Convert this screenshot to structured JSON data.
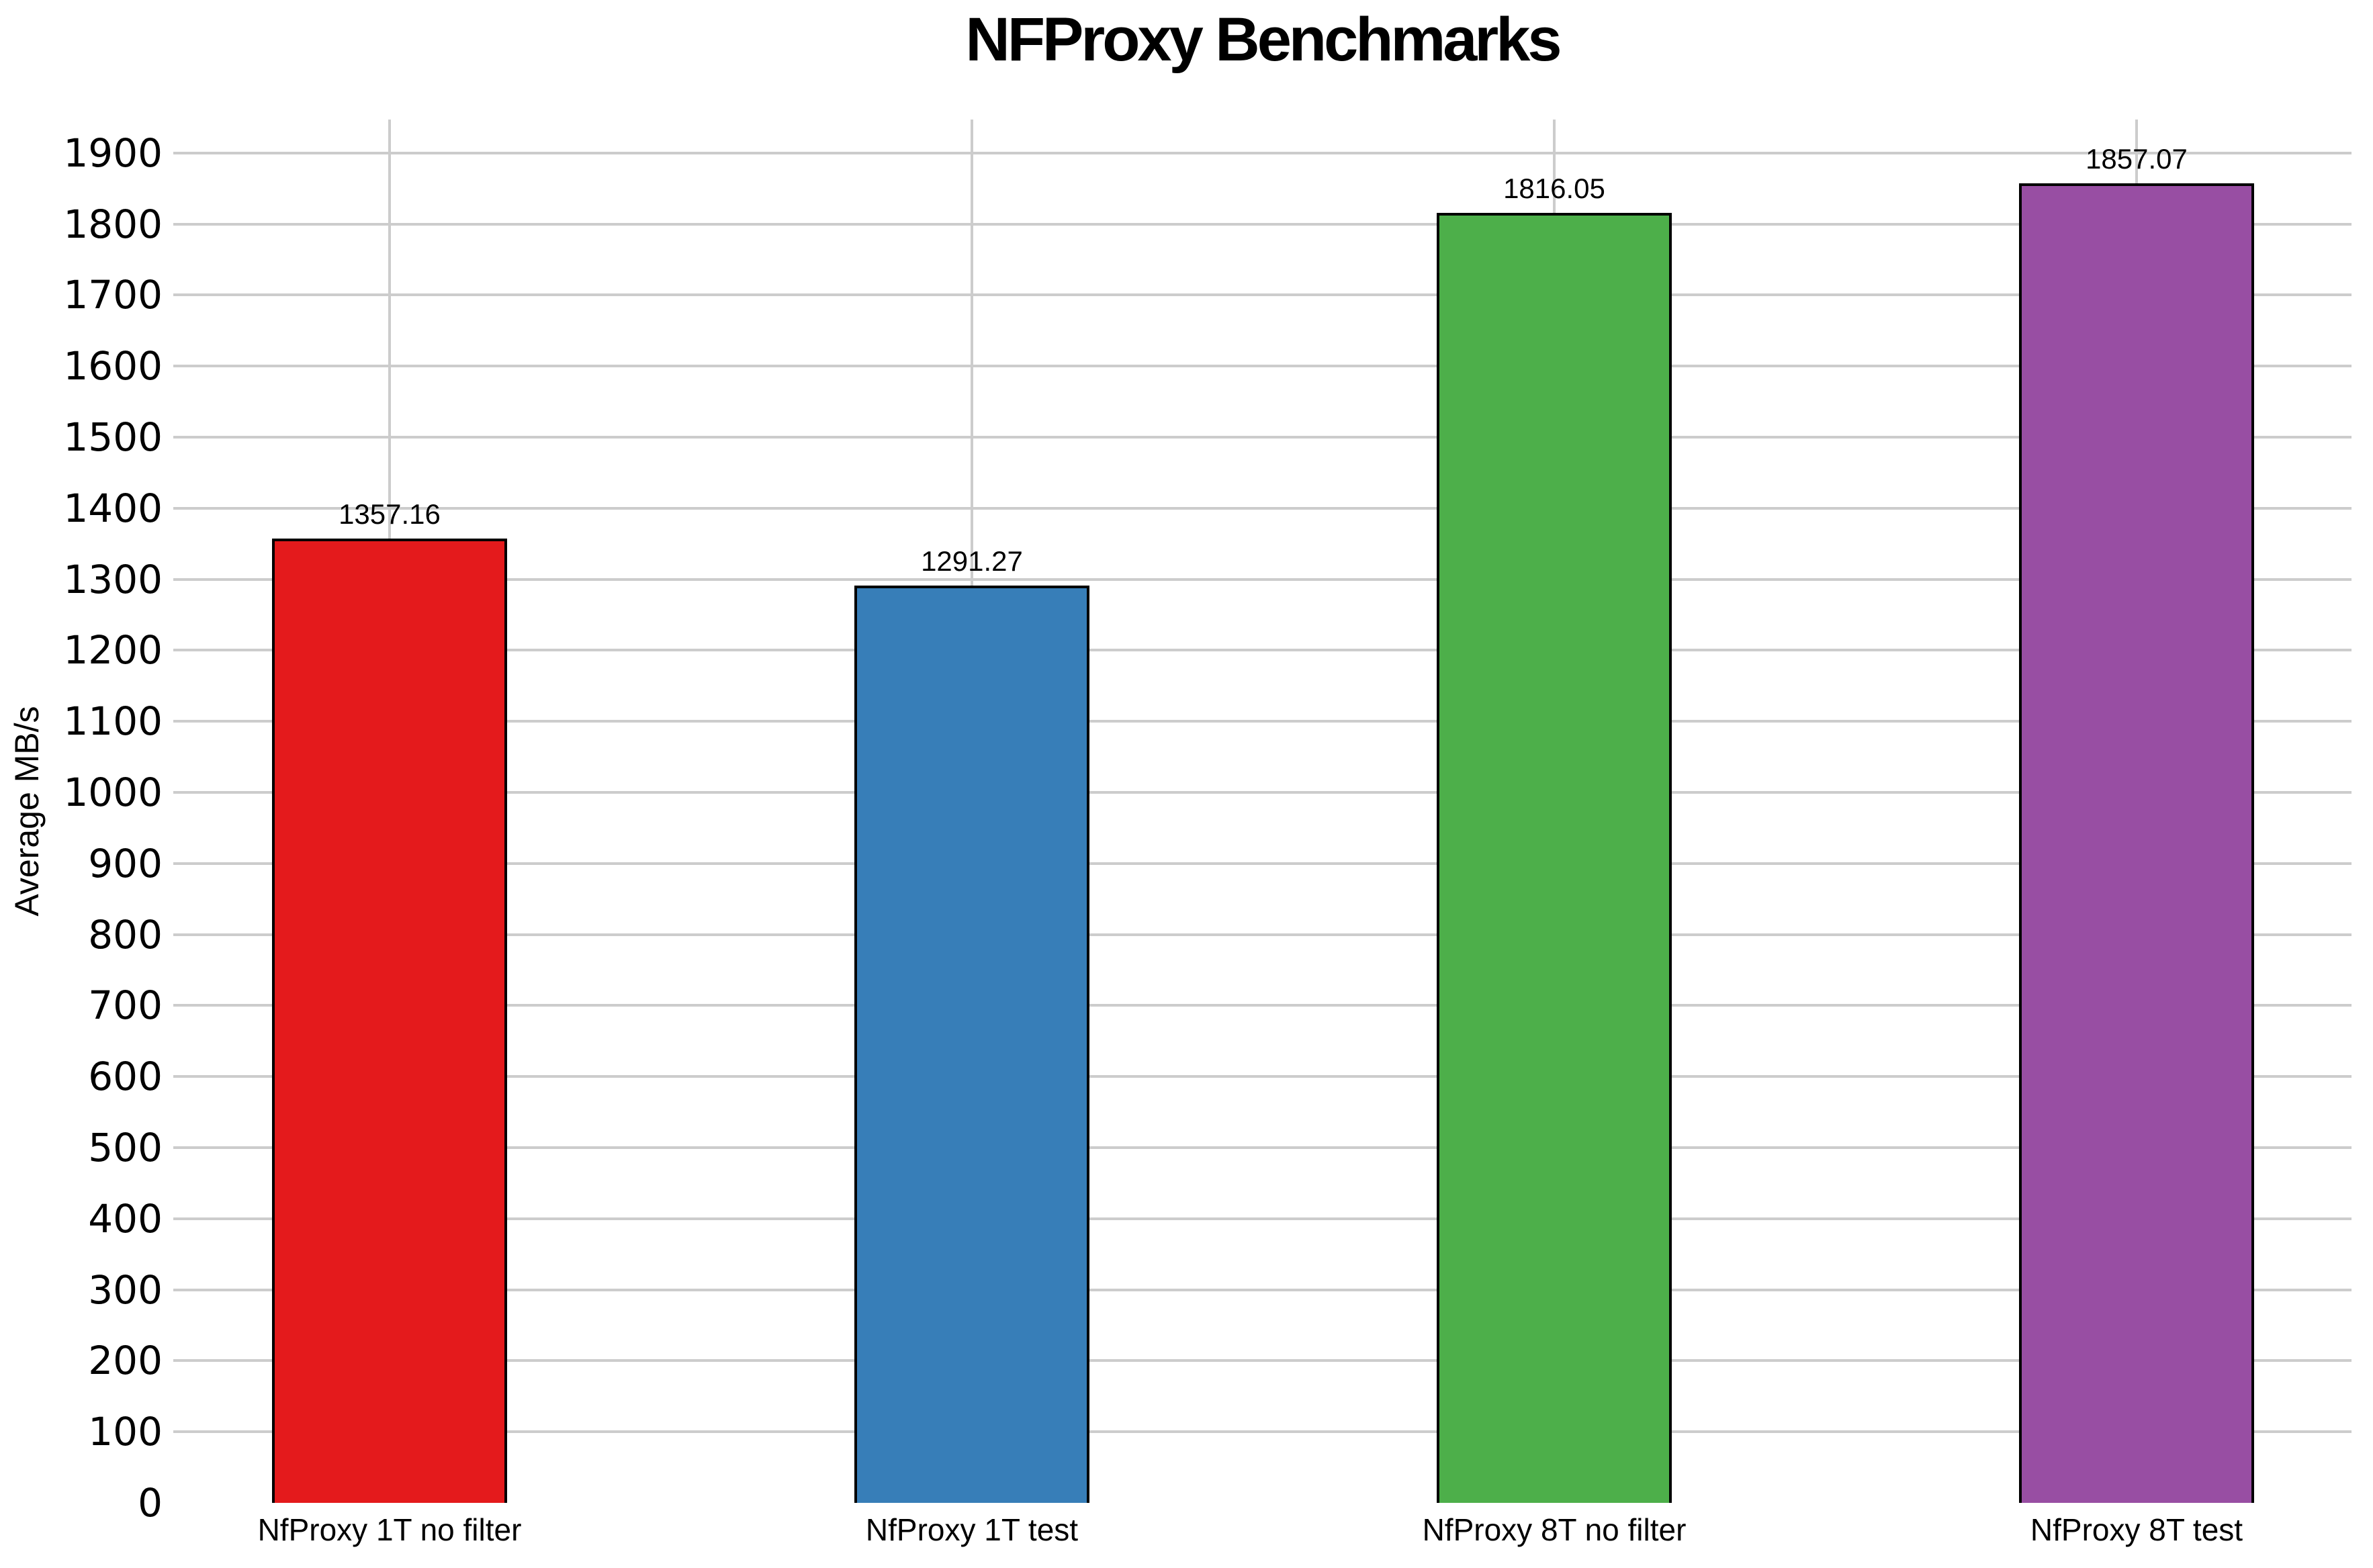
{
  "page": {
    "background": "#ffffff",
    "text_color": "#000000"
  },
  "chart_data": {
    "type": "bar",
    "title": "NFProxy Benchmarks",
    "xlabel": "",
    "ylabel": "Average MB/s",
    "categories": [
      "NfProxy 1T no filter",
      "NfProxy 1T test",
      "NfProxy 8T no filter",
      "NfProxy 8T test"
    ],
    "values": [
      1357.16,
      1291.27,
      1816.05,
      1857.07
    ],
    "value_labels": [
      "1357.16",
      "1291.27",
      "1816.05",
      "1857.07"
    ],
    "bar_colors": [
      "#e41a1c",
      "#377eb8",
      "#4daf4a",
      "#984ea3"
    ],
    "bar_border_color": "#000000",
    "ylim": [
      0,
      1947
    ],
    "y_ticks": [
      0,
      100,
      200,
      300,
      400,
      500,
      600,
      700,
      800,
      900,
      1000,
      1100,
      1200,
      1300,
      1400,
      1500,
      1600,
      1700,
      1800,
      1900
    ],
    "grid": true,
    "grid_color": "#cccccc",
    "legend_position": "none"
  }
}
